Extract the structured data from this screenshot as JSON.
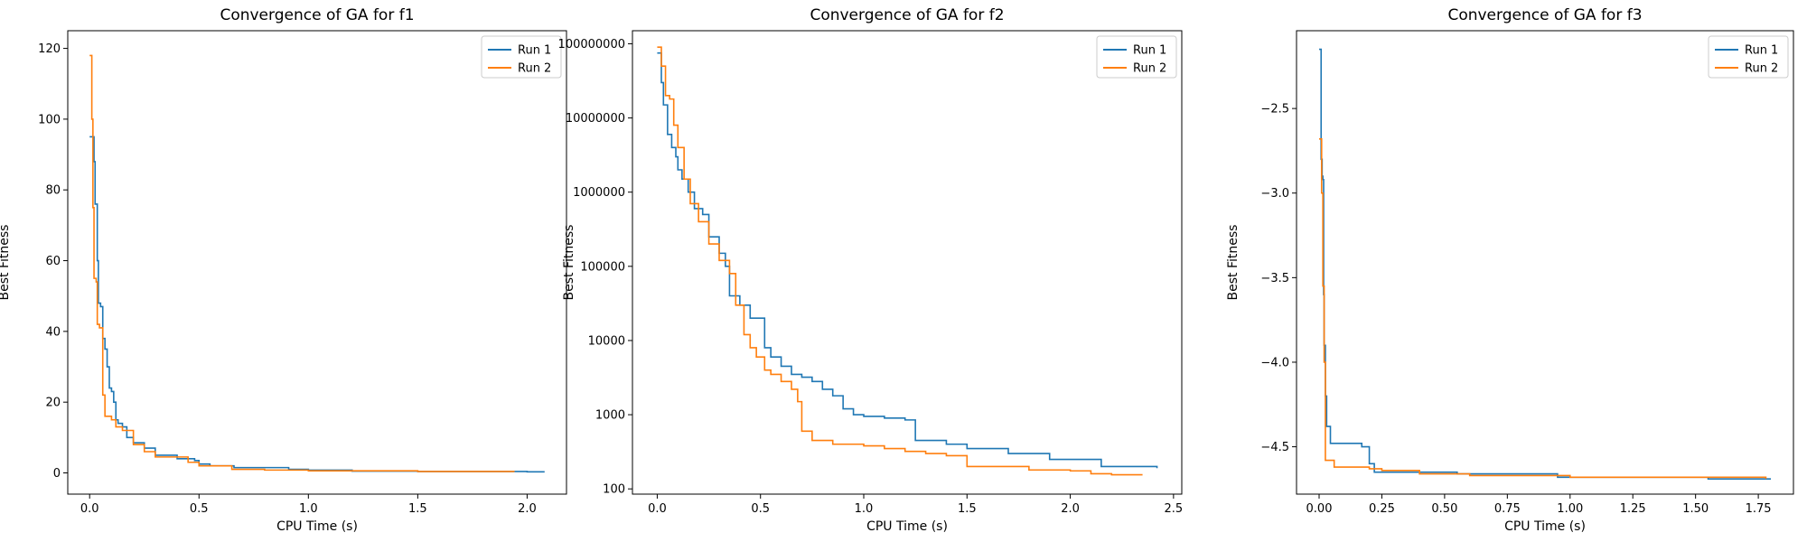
{
  "chart_data": [
    {
      "type": "line",
      "title": "Convergence of GA for f1",
      "xlabel": "CPU Time (s)",
      "ylabel": "Best Fitness",
      "xlim": [
        -0.1,
        2.18
      ],
      "ylim": [
        -6,
        125
      ],
      "yscale": "linear",
      "xticks": [
        0.0,
        0.5,
        1.0,
        1.5,
        2.0
      ],
      "xtick_labels": [
        "0.0",
        "0.5",
        "1.0",
        "1.5",
        "2.0"
      ],
      "yticks": [
        0,
        20,
        40,
        60,
        80,
        100,
        120
      ],
      "ytick_labels": [
        "0",
        "20",
        "40",
        "60",
        "80",
        "100",
        "120"
      ],
      "legend": "top-right",
      "grid": false,
      "series": [
        {
          "name": "Run 1",
          "color": "#1f77b4",
          "points": [
            [
              0.0,
              95
            ],
            [
              0.01,
              95
            ],
            [
              0.02,
              88
            ],
            [
              0.025,
              76
            ],
            [
              0.03,
              76
            ],
            [
              0.035,
              60
            ],
            [
              0.04,
              48
            ],
            [
              0.05,
              47
            ],
            [
              0.06,
              38
            ],
            [
              0.07,
              35
            ],
            [
              0.08,
              30
            ],
            [
              0.09,
              24
            ],
            [
              0.1,
              23
            ],
            [
              0.11,
              20
            ],
            [
              0.12,
              15
            ],
            [
              0.13,
              14
            ],
            [
              0.15,
              13
            ],
            [
              0.17,
              10
            ],
            [
              0.2,
              8.5
            ],
            [
              0.25,
              7
            ],
            [
              0.3,
              5
            ],
            [
              0.4,
              4
            ],
            [
              0.45,
              4
            ],
            [
              0.48,
              3.5
            ],
            [
              0.5,
              2.5
            ],
            [
              0.55,
              2
            ],
            [
              0.65,
              2
            ],
            [
              0.66,
              1.5
            ],
            [
              0.9,
              1.5
            ],
            [
              0.91,
              1
            ],
            [
              1.0,
              0.8
            ],
            [
              1.2,
              0.5
            ],
            [
              1.5,
              0.4
            ],
            [
              2.0,
              0.3
            ],
            [
              2.08,
              0.3
            ]
          ]
        },
        {
          "name": "Run 2",
          "color": "#ff7f0e",
          "points": [
            [
              0.0,
              118
            ],
            [
              0.005,
              118
            ],
            [
              0.01,
              100
            ],
            [
              0.015,
              75
            ],
            [
              0.02,
              55
            ],
            [
              0.03,
              54
            ],
            [
              0.035,
              42
            ],
            [
              0.045,
              41
            ],
            [
              0.06,
              22
            ],
            [
              0.07,
              16
            ],
            [
              0.1,
              15
            ],
            [
              0.12,
              13
            ],
            [
              0.15,
              12
            ],
            [
              0.2,
              8
            ],
            [
              0.25,
              6
            ],
            [
              0.3,
              4.5
            ],
            [
              0.4,
              4.5
            ],
            [
              0.45,
              3
            ],
            [
              0.5,
              2
            ],
            [
              0.6,
              2
            ],
            [
              0.65,
              1
            ],
            [
              0.8,
              0.8
            ],
            [
              1.0,
              0.6
            ],
            [
              1.5,
              0.4
            ],
            [
              1.94,
              0.3
            ]
          ]
        }
      ]
    },
    {
      "type": "line",
      "title": "Convergence of GA for f2",
      "xlabel": "CPU Time (s)",
      "ylabel": "Best Fitness",
      "xlim": [
        -0.12,
        2.54
      ],
      "ylim": [
        85,
        150000000
      ],
      "yscale": "log",
      "xticks": [
        0.0,
        0.5,
        1.0,
        1.5,
        2.0,
        2.5
      ],
      "xtick_labels": [
        "0.0",
        "0.5",
        "1.0",
        "1.5",
        "2.0",
        "2.5"
      ],
      "yticks": [
        100,
        1000,
        10000,
        100000,
        1000000,
        10000000,
        100000000
      ],
      "ytick_labels": [
        "100",
        "1000",
        "10000",
        "100000",
        "1000000",
        "10000000",
        "100000000"
      ],
      "legend": "top-right",
      "grid": false,
      "series": [
        {
          "name": "Run 1",
          "color": "#1f77b4",
          "points": [
            [
              0.0,
              75000000
            ],
            [
              0.02,
              30000000
            ],
            [
              0.03,
              15000000
            ],
            [
              0.05,
              6000000
            ],
            [
              0.07,
              4000000
            ],
            [
              0.09,
              3000000
            ],
            [
              0.1,
              2000000
            ],
            [
              0.12,
              1500000
            ],
            [
              0.15,
              1000000
            ],
            [
              0.18,
              600000
            ],
            [
              0.22,
              500000
            ],
            [
              0.25,
              250000
            ],
            [
              0.3,
              150000
            ],
            [
              0.33,
              100000
            ],
            [
              0.35,
              40000
            ],
            [
              0.4,
              30000
            ],
            [
              0.45,
              20000
            ],
            [
              0.5,
              20000
            ],
            [
              0.52,
              8000
            ],
            [
              0.55,
              6000
            ],
            [
              0.6,
              4500
            ],
            [
              0.65,
              3500
            ],
            [
              0.7,
              3200
            ],
            [
              0.75,
              2800
            ],
            [
              0.8,
              2200
            ],
            [
              0.85,
              1800
            ],
            [
              0.9,
              1200
            ],
            [
              0.95,
              1000
            ],
            [
              1.0,
              950
            ],
            [
              1.1,
              900
            ],
            [
              1.2,
              850
            ],
            [
              1.25,
              450
            ],
            [
              1.3,
              450
            ],
            [
              1.4,
              400
            ],
            [
              1.5,
              350
            ],
            [
              1.7,
              300
            ],
            [
              1.9,
              250
            ],
            [
              2.0,
              250
            ],
            [
              2.15,
              200
            ],
            [
              2.3,
              200
            ],
            [
              2.42,
              190
            ]
          ]
        },
        {
          "name": "Run 2",
          "color": "#ff7f0e",
          "points": [
            [
              0.0,
              90000000
            ],
            [
              0.02,
              50000000
            ],
            [
              0.04,
              20000000
            ],
            [
              0.06,
              18000000
            ],
            [
              0.08,
              8000000
            ],
            [
              0.1,
              4000000
            ],
            [
              0.13,
              1500000
            ],
            [
              0.16,
              700000
            ],
            [
              0.2,
              400000
            ],
            [
              0.25,
              200000
            ],
            [
              0.3,
              120000
            ],
            [
              0.35,
              80000
            ],
            [
              0.38,
              30000
            ],
            [
              0.42,
              12000
            ],
            [
              0.45,
              8000
            ],
            [
              0.48,
              6000
            ],
            [
              0.52,
              4000
            ],
            [
              0.55,
              3500
            ],
            [
              0.6,
              2800
            ],
            [
              0.65,
              2200
            ],
            [
              0.68,
              1500
            ],
            [
              0.7,
              600
            ],
            [
              0.75,
              450
            ],
            [
              0.8,
              450
            ],
            [
              0.85,
              400
            ],
            [
              0.9,
              400
            ],
            [
              1.0,
              380
            ],
            [
              1.1,
              350
            ],
            [
              1.2,
              320
            ],
            [
              1.3,
              300
            ],
            [
              1.4,
              280
            ],
            [
              1.47,
              280
            ],
            [
              1.5,
              200
            ],
            [
              1.6,
              200
            ],
            [
              1.8,
              180
            ],
            [
              2.0,
              175
            ],
            [
              2.1,
              160
            ],
            [
              2.2,
              155
            ],
            [
              2.35,
              155
            ]
          ]
        }
      ]
    },
    {
      "type": "line",
      "title": "Convergence of GA for f3",
      "xlabel": "CPU Time (s)",
      "ylabel": "Best Fitness",
      "xlim": [
        -0.09,
        1.89
      ],
      "ylim": [
        -4.78,
        -2.04
      ],
      "yscale": "linear",
      "xticks": [
        0.0,
        0.25,
        0.5,
        0.75,
        1.0,
        1.25,
        1.5,
        1.75
      ],
      "xtick_labels": [
        "0.00",
        "0.25",
        "0.50",
        "0.75",
        "1.00",
        "1.25",
        "1.50",
        "1.75"
      ],
      "yticks": [
        -4.5,
        -4.0,
        -3.5,
        -3.0,
        -2.5
      ],
      "ytick_labels": [
        "−4.5",
        "−4.0",
        "−3.5",
        "−3.0",
        "−2.5"
      ],
      "legend": "top-right",
      "grid": false,
      "series": [
        {
          "name": "Run 1",
          "color": "#1f77b4",
          "points": [
            [
              0.0,
              -2.15
            ],
            [
              0.005,
              -2.15
            ],
            [
              0.008,
              -2.8
            ],
            [
              0.012,
              -2.9
            ],
            [
              0.015,
              -2.92
            ],
            [
              0.018,
              -3.6
            ],
            [
              0.02,
              -3.9
            ],
            [
              0.025,
              -4.2
            ],
            [
              0.03,
              -4.38
            ],
            [
              0.04,
              -4.38
            ],
            [
              0.045,
              -4.48
            ],
            [
              0.15,
              -4.48
            ],
            [
              0.17,
              -4.5
            ],
            [
              0.2,
              -4.6
            ],
            [
              0.22,
              -4.65
            ],
            [
              0.5,
              -4.65
            ],
            [
              0.55,
              -4.66
            ],
            [
              0.9,
              -4.66
            ],
            [
              0.95,
              -4.68
            ],
            [
              1.5,
              -4.68
            ],
            [
              1.55,
              -4.69
            ],
            [
              1.8,
              -4.69
            ]
          ]
        },
        {
          "name": "Run 2",
          "color": "#ff7f0e",
          "points": [
            [
              0.0,
              -2.68
            ],
            [
              0.005,
              -2.68
            ],
            [
              0.01,
              -3.0
            ],
            [
              0.015,
              -3.55
            ],
            [
              0.02,
              -4.0
            ],
            [
              0.025,
              -4.58
            ],
            [
              0.04,
              -4.58
            ],
            [
              0.06,
              -4.62
            ],
            [
              0.1,
              -4.62
            ],
            [
              0.2,
              -4.63
            ],
            [
              0.25,
              -4.64
            ],
            [
              0.36,
              -4.64
            ],
            [
              0.4,
              -4.66
            ],
            [
              0.6,
              -4.67
            ],
            [
              1.0,
              -4.68
            ],
            [
              1.78,
              -4.69
            ]
          ]
        }
      ]
    }
  ]
}
